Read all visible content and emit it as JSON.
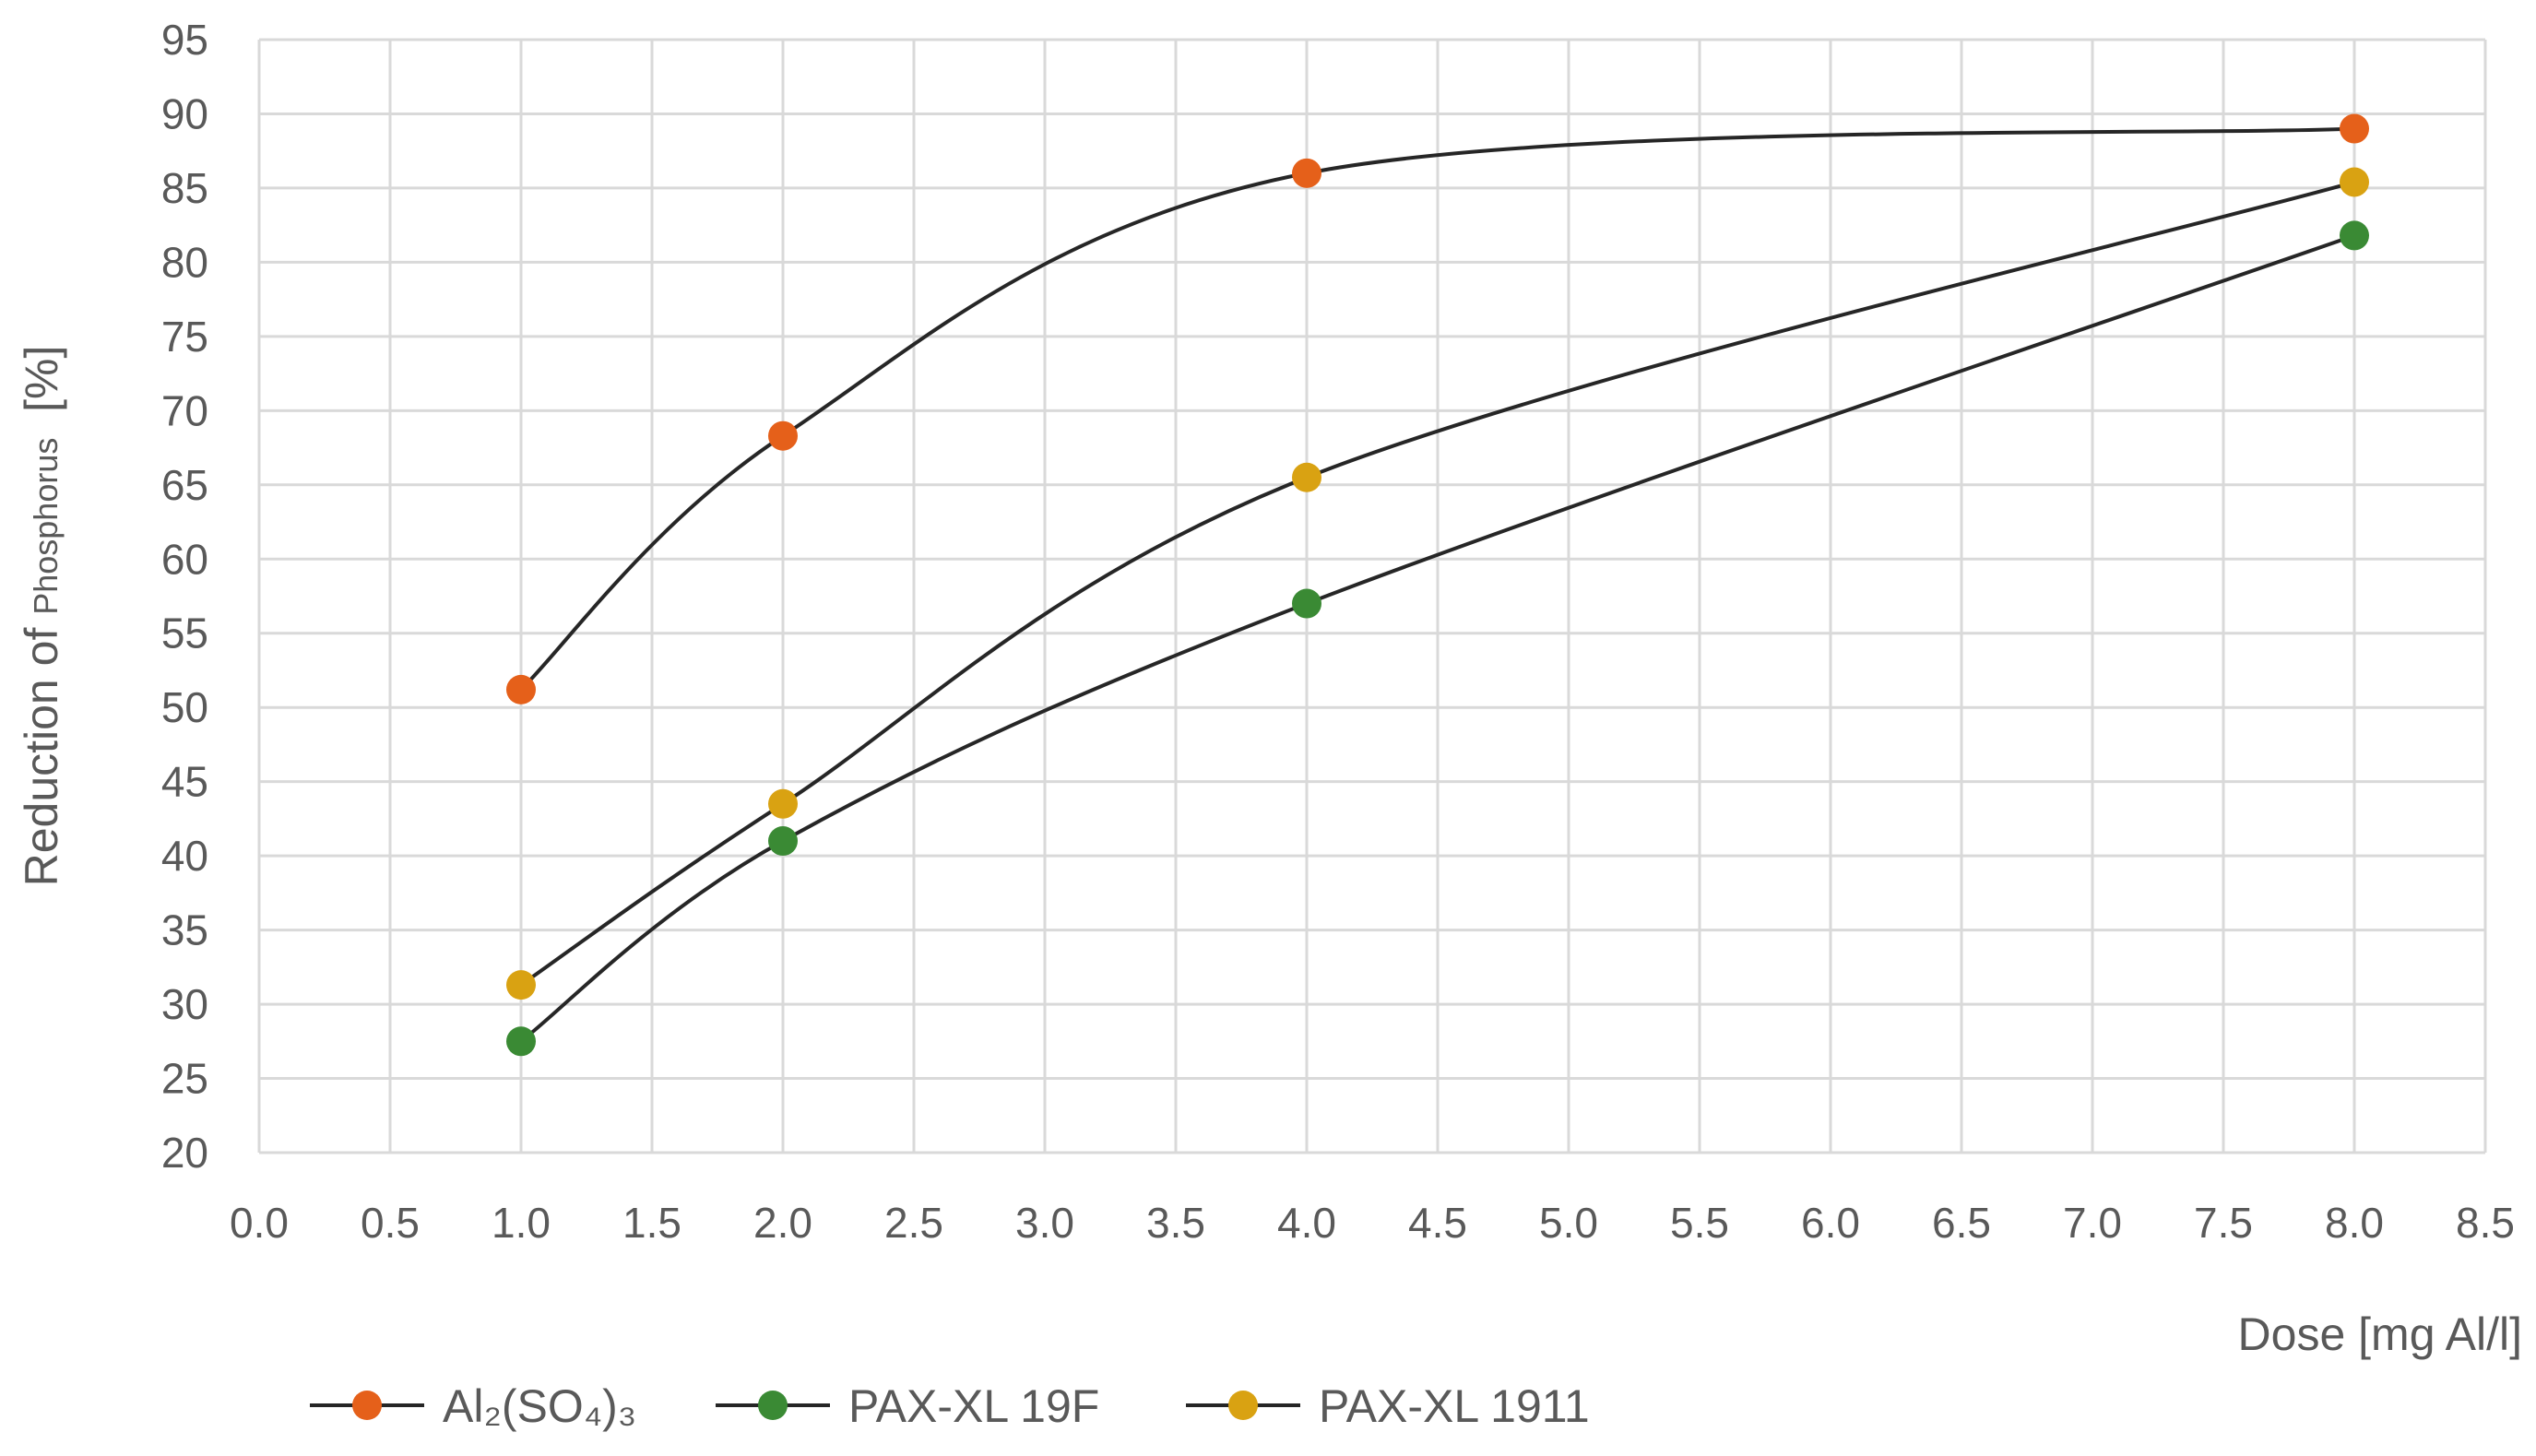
{
  "chart_data": {
    "type": "line",
    "title": "",
    "xlabel": "Dose [mg Al/l]",
    "ylabel_main": "Reduction of ",
    "ylabel_small": "Phosphorus",
    "ylabel_unit": "  [%]",
    "xlim": [
      0,
      8.5
    ],
    "ylim": [
      20,
      95
    ],
    "x_ticks": [
      "0.0",
      "0.5",
      "1.0",
      "1.5",
      "2.0",
      "2.5",
      "3.0",
      "3.5",
      "4.0",
      "4.5",
      "5.0",
      "5.5",
      "6.0",
      "6.5",
      "7.0",
      "7.5",
      "8.0",
      "8.5"
    ],
    "y_ticks": [
      "20",
      "25",
      "30",
      "35",
      "40",
      "45",
      "50",
      "55",
      "60",
      "65",
      "70",
      "75",
      "80",
      "85",
      "90",
      "95"
    ],
    "grid": true,
    "smooth": true,
    "legend_position": "bottom",
    "series": [
      {
        "name": "Al₂(SO₄)₃",
        "color": "#e5601a",
        "x": [
          1,
          2,
          4,
          8
        ],
        "y": [
          51.2,
          68.3,
          86.0,
          89.0
        ]
      },
      {
        "name": "PAX-XL 19F",
        "color": "#3a8a34",
        "x": [
          1,
          2,
          4,
          8
        ],
        "y": [
          27.5,
          41.0,
          57.0,
          81.8
        ]
      },
      {
        "name": "PAX-XL 1911",
        "color": "#d9a212",
        "x": [
          1,
          2,
          4,
          8
        ],
        "y": [
          31.3,
          43.5,
          65.5,
          85.4
        ]
      }
    ]
  }
}
